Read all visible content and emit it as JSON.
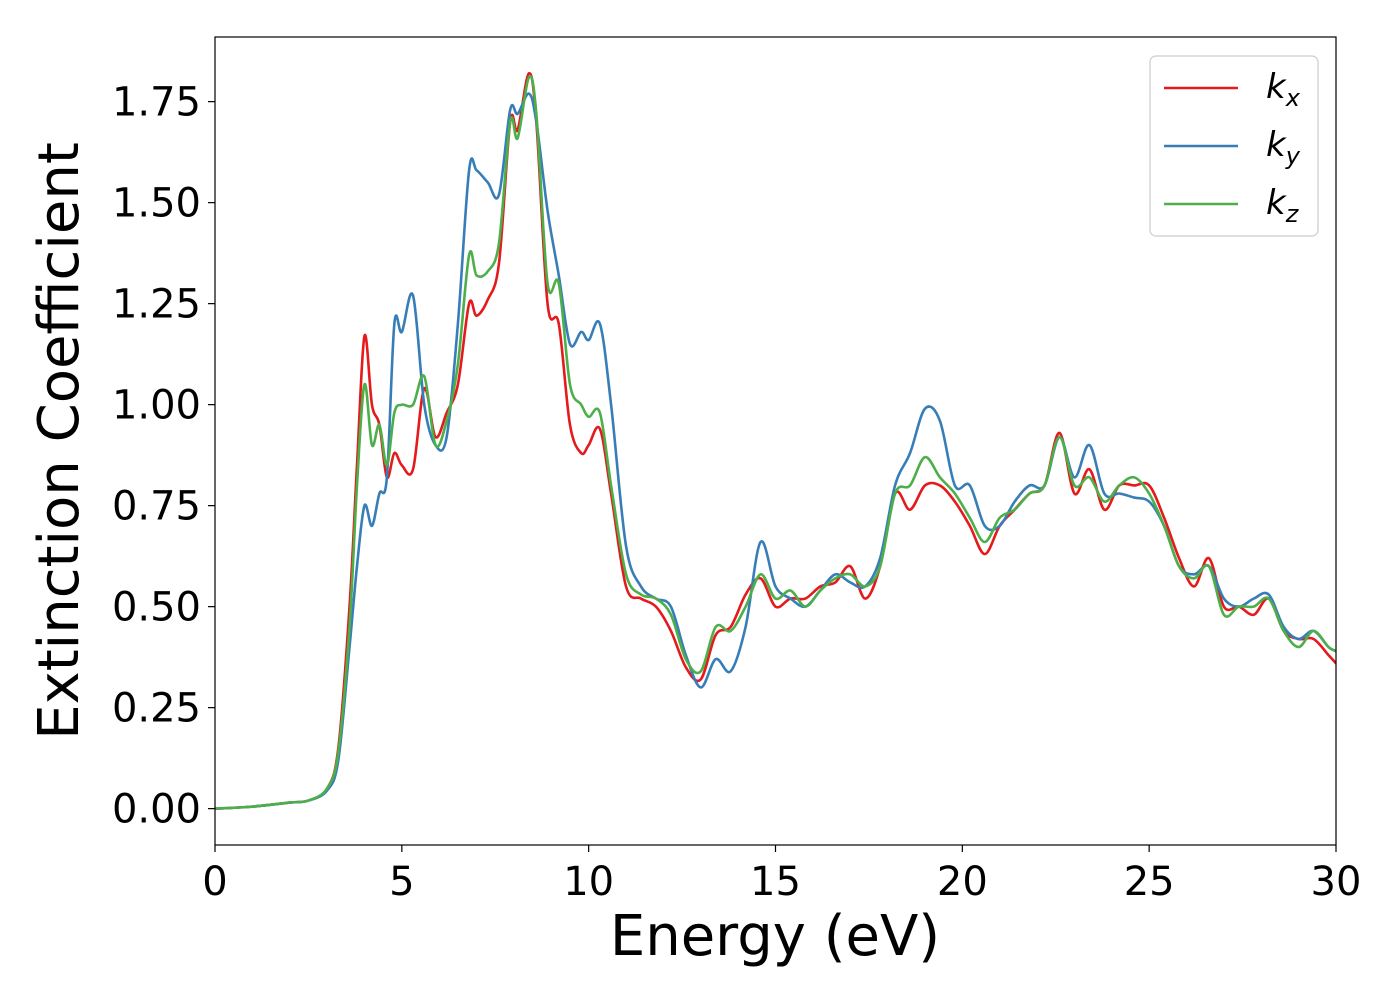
{
  "chart_data": {
    "type": "line",
    "xlabel": "Energy (eV)",
    "ylabel": "Extinction Coefficient",
    "xlim": [
      0,
      30
    ],
    "ylim": [
      -0.09,
      1.91
    ],
    "xticks": [
      0,
      5,
      10,
      15,
      20,
      25,
      30
    ],
    "xtick_labels": [
      "0",
      "5",
      "10",
      "15",
      "20",
      "25",
      "30"
    ],
    "yticks": [
      0.0,
      0.25,
      0.5,
      0.75,
      1.0,
      1.25,
      1.5,
      1.75
    ],
    "ytick_labels": [
      "0.00",
      "0.25",
      "0.50",
      "0.75",
      "1.00",
      "1.25",
      "1.50",
      "1.75"
    ],
    "grid": false,
    "legend_position": "top-right",
    "series": [
      {
        "name": "k_x",
        "legend_base": "k",
        "legend_sub": "x",
        "color": "#e41a1c",
        "x": [
          0,
          1,
          2,
          2.5,
          3,
          3.3,
          3.6,
          3.8,
          4.0,
          4.2,
          4.4,
          4.6,
          4.8,
          5.0,
          5.3,
          5.6,
          5.9,
          6.2,
          6.5,
          6.8,
          7.0,
          7.3,
          7.6,
          7.9,
          8.1,
          8.4,
          8.6,
          8.9,
          9.2,
          9.5,
          9.8,
          10.0,
          10.3,
          10.6,
          11.0,
          11.4,
          11.8,
          12.2,
          12.6,
          13.0,
          13.4,
          13.8,
          14.2,
          14.6,
          15.0,
          15.4,
          15.8,
          16.2,
          16.6,
          17.0,
          17.4,
          17.8,
          18.2,
          18.6,
          19.0,
          19.4,
          19.8,
          20.2,
          20.6,
          21.0,
          21.4,
          21.8,
          22.2,
          22.6,
          23.0,
          23.4,
          23.8,
          24.2,
          24.6,
          25.0,
          25.4,
          25.8,
          26.2,
          26.6,
          27.0,
          27.4,
          27.8,
          28.2,
          28.6,
          29.0,
          29.4,
          29.8,
          30.0
        ],
        "y": [
          0.0,
          0.005,
          0.015,
          0.02,
          0.05,
          0.15,
          0.5,
          0.85,
          1.17,
          1.0,
          0.95,
          0.82,
          0.88,
          0.85,
          0.84,
          1.04,
          0.92,
          0.98,
          1.05,
          1.25,
          1.22,
          1.26,
          1.35,
          1.7,
          1.68,
          1.82,
          1.7,
          1.25,
          1.2,
          0.95,
          0.88,
          0.9,
          0.94,
          0.78,
          0.55,
          0.52,
          0.5,
          0.44,
          0.35,
          0.32,
          0.43,
          0.45,
          0.53,
          0.57,
          0.5,
          0.52,
          0.52,
          0.55,
          0.56,
          0.6,
          0.52,
          0.6,
          0.78,
          0.74,
          0.8,
          0.8,
          0.76,
          0.7,
          0.63,
          0.7,
          0.74,
          0.78,
          0.8,
          0.93,
          0.78,
          0.84,
          0.74,
          0.8,
          0.8,
          0.8,
          0.72,
          0.62,
          0.55,
          0.62,
          0.5,
          0.5,
          0.48,
          0.52,
          0.44,
          0.42,
          0.42,
          0.38,
          0.36
        ]
      },
      {
        "name": "k_y",
        "legend_base": "k",
        "legend_sub": "y",
        "color": "#377eb8",
        "x": [
          0,
          1,
          2,
          2.5,
          3,
          3.3,
          3.6,
          3.8,
          4.0,
          4.2,
          4.4,
          4.6,
          4.8,
          5.0,
          5.3,
          5.6,
          5.9,
          6.2,
          6.5,
          6.8,
          7.0,
          7.3,
          7.6,
          7.9,
          8.1,
          8.4,
          8.6,
          8.9,
          9.2,
          9.5,
          9.8,
          10.0,
          10.3,
          10.6,
          11.0,
          11.4,
          11.8,
          12.2,
          12.6,
          13.0,
          13.4,
          13.8,
          14.2,
          14.6,
          15.0,
          15.4,
          15.8,
          16.2,
          16.6,
          17.0,
          17.4,
          17.8,
          18.2,
          18.6,
          19.0,
          19.4,
          19.8,
          20.2,
          20.6,
          21.0,
          21.4,
          21.8,
          22.2,
          22.6,
          23.0,
          23.4,
          23.8,
          24.2,
          24.6,
          25.0,
          25.4,
          25.8,
          26.2,
          26.6,
          27.0,
          27.4,
          27.8,
          28.2,
          28.6,
          29.0,
          29.4,
          29.8,
          30.0
        ],
        "y": [
          0.0,
          0.005,
          0.015,
          0.02,
          0.045,
          0.12,
          0.4,
          0.6,
          0.75,
          0.7,
          0.78,
          0.82,
          1.2,
          1.18,
          1.27,
          1.0,
          0.9,
          0.92,
          1.2,
          1.58,
          1.58,
          1.55,
          1.52,
          1.73,
          1.72,
          1.77,
          1.7,
          1.48,
          1.32,
          1.15,
          1.18,
          1.16,
          1.2,
          1.0,
          0.65,
          0.55,
          0.52,
          0.5,
          0.38,
          0.3,
          0.37,
          0.34,
          0.45,
          0.66,
          0.55,
          0.52,
          0.5,
          0.54,
          0.58,
          0.56,
          0.55,
          0.62,
          0.8,
          0.88,
          0.99,
          0.96,
          0.8,
          0.8,
          0.7,
          0.7,
          0.76,
          0.8,
          0.8,
          0.92,
          0.82,
          0.9,
          0.78,
          0.78,
          0.77,
          0.76,
          0.7,
          0.6,
          0.58,
          0.6,
          0.52,
          0.5,
          0.52,
          0.53,
          0.45,
          0.42,
          0.44,
          0.4,
          0.39
        ]
      },
      {
        "name": "k_z",
        "legend_base": "k",
        "legend_sub": "z",
        "color": "#4daf4a",
        "x": [
          0,
          1,
          2,
          2.5,
          3,
          3.3,
          3.6,
          3.8,
          4.0,
          4.2,
          4.4,
          4.6,
          4.8,
          5.0,
          5.3,
          5.6,
          5.9,
          6.2,
          6.5,
          6.8,
          7.0,
          7.3,
          7.6,
          7.9,
          8.1,
          8.4,
          8.6,
          8.9,
          9.2,
          9.5,
          9.8,
          10.0,
          10.3,
          10.6,
          11.0,
          11.4,
          11.8,
          12.2,
          12.6,
          13.0,
          13.4,
          13.8,
          14.2,
          14.6,
          15.0,
          15.4,
          15.8,
          16.2,
          16.6,
          17.0,
          17.4,
          17.8,
          18.2,
          18.6,
          19.0,
          19.4,
          19.8,
          20.2,
          20.6,
          21.0,
          21.4,
          21.8,
          22.2,
          22.6,
          23.0,
          23.4,
          23.8,
          24.2,
          24.6,
          25.0,
          25.4,
          25.8,
          26.2,
          26.6,
          27.0,
          27.4,
          27.8,
          28.2,
          28.6,
          29.0,
          29.4,
          29.8,
          30.0
        ],
        "y": [
          0.0,
          0.005,
          0.015,
          0.02,
          0.05,
          0.14,
          0.45,
          0.8,
          1.05,
          0.9,
          0.95,
          0.85,
          0.98,
          1.0,
          1.0,
          1.07,
          0.9,
          0.96,
          1.1,
          1.37,
          1.32,
          1.33,
          1.4,
          1.7,
          1.66,
          1.81,
          1.72,
          1.3,
          1.3,
          1.05,
          1.0,
          0.97,
          0.98,
          0.8,
          0.58,
          0.53,
          0.52,
          0.48,
          0.37,
          0.34,
          0.45,
          0.44,
          0.5,
          0.58,
          0.52,
          0.54,
          0.5,
          0.54,
          0.57,
          0.58,
          0.55,
          0.6,
          0.78,
          0.8,
          0.87,
          0.82,
          0.78,
          0.72,
          0.66,
          0.72,
          0.74,
          0.78,
          0.8,
          0.92,
          0.8,
          0.82,
          0.76,
          0.8,
          0.82,
          0.78,
          0.7,
          0.6,
          0.57,
          0.6,
          0.48,
          0.5,
          0.5,
          0.52,
          0.44,
          0.4,
          0.44,
          0.4,
          0.39
        ]
      }
    ]
  }
}
